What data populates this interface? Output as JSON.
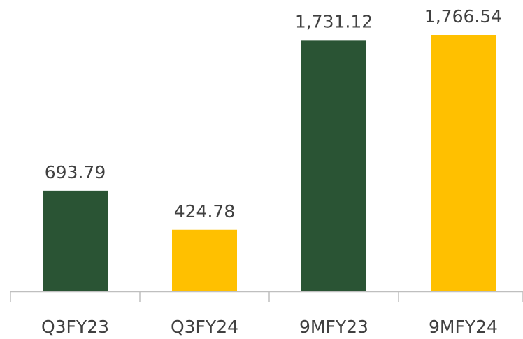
{
  "chart_data": {
    "type": "bar",
    "categories": [
      "Q3FY23",
      "Q3FY24",
      "9MFY23",
      "9MFY24"
    ],
    "values": [
      693.79,
      424.78,
      1731.12,
      1766.54
    ],
    "value_labels": [
      "693.79",
      "424.78",
      "1,731.12",
      "1,766.54"
    ],
    "colors": [
      "#2a5434",
      "#ffc000",
      "#2a5434",
      "#ffc000"
    ]
  }
}
